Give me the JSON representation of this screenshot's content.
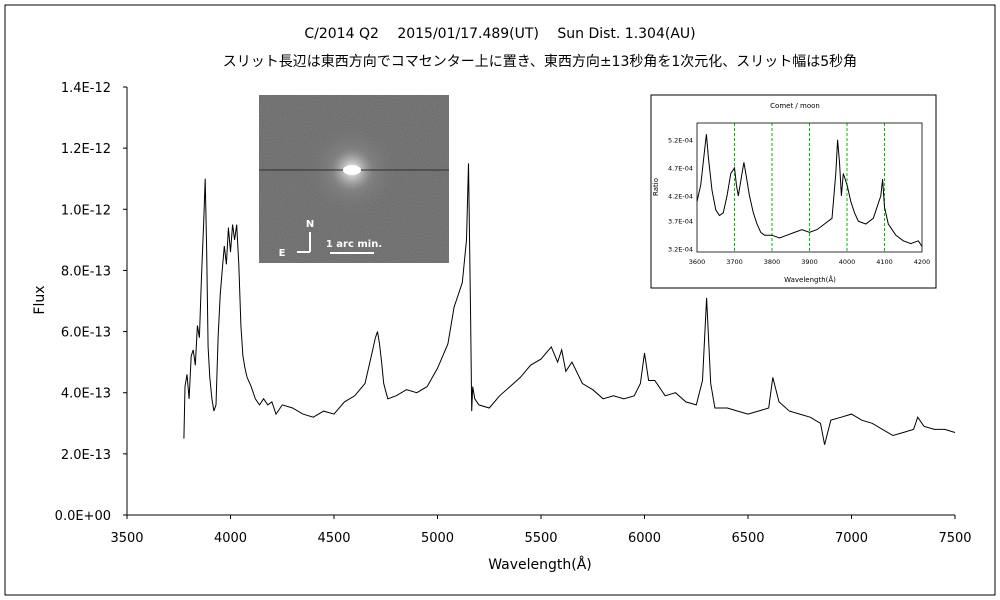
{
  "chart_data": [
    {
      "type": "line",
      "title": "C/2014 Q2　 2015/01/17.489(UT)　 Sun Dist. 1.304(AU)",
      "subtitle": "スリット長辺は東西方向でコマセンター上に置き、東西方向±13秒角を1次元化、スリット幅は5秒角",
      "xlabel": "Wavelength(Å)",
      "ylabel": "Flux",
      "xlim": [
        3500,
        7500
      ],
      "ylim": [
        0,
        1.4e-12
      ],
      "xticks": [
        3500,
        4000,
        4500,
        5000,
        5500,
        6000,
        6500,
        7000,
        7500
      ],
      "yticks": [
        0,
        2e-13,
        4e-13,
        6e-13,
        8e-13,
        1e-12,
        1.2e-12,
        1.4e-12
      ],
      "ytick_labels": [
        "0.0E+00",
        "2.0E-13",
        "4.0E-13",
        "6.0E-13",
        "8.0E-13",
        "1.0E-12",
        "1.2E-12",
        "1.4E-12"
      ],
      "grid": false,
      "line_color": "#000000",
      "series": [
        {
          "x": [
            3775,
            3780,
            3790,
            3800,
            3810,
            3820,
            3830,
            3840,
            3850,
            3860,
            3870,
            3878,
            3885,
            3892,
            3900,
            3910,
            3920,
            3930,
            3940,
            3950,
            3960,
            3970,
            3980,
            3990,
            4000,
            4010,
            4020,
            4030,
            4040,
            4050,
            4060,
            4070,
            4080,
            4100,
            4120,
            4140,
            4160,
            4180,
            4200,
            4220,
            4250,
            4300,
            4350,
            4400,
            4450,
            4500,
            4550,
            4600,
            4650,
            4680,
            4700,
            4710,
            4720,
            4730,
            4740,
            4760,
            4800,
            4850,
            4900,
            4950,
            5000,
            5050,
            5080,
            5100,
            5120,
            5140,
            5150,
            5160,
            5165,
            5170,
            5180,
            5200,
            5250,
            5300,
            5350,
            5400,
            5450,
            5500,
            5550,
            5580,
            5600,
            5620,
            5650,
            5700,
            5750,
            5800,
            5850,
            5900,
            5950,
            5980,
            6000,
            6020,
            6050,
            6100,
            6150,
            6200,
            6250,
            6280,
            6300,
            6320,
            6340,
            6400,
            6450,
            6500,
            6550,
            6600,
            6620,
            6650,
            6700,
            6750,
            6800,
            6850,
            6870,
            6900,
            6950,
            7000,
            7050,
            7100,
            7150,
            7200,
            7250,
            7300,
            7320,
            7350,
            7400,
            7450,
            7500
          ],
          "y": [
            2.5e-13,
            4.2e-13,
            4.6e-13,
            3.8e-13,
            5.2e-13,
            5.4e-13,
            4.9e-13,
            6.2e-13,
            5.8e-13,
            7.8e-13,
            9.5e-13,
            1.1e-12,
            8.6e-13,
            5.5e-13,
            4.5e-13,
            3.8e-13,
            3.4e-13,
            3.6e-13,
            5.8e-13,
            7.2e-13,
            8e-13,
            8.8e-13,
            8.2e-13,
            9.4e-13,
            8.6e-13,
            9.5e-13,
            9e-13,
            9.5e-13,
            8.2e-13,
            6.2e-13,
            5.2e-13,
            4.8e-13,
            4.5e-13,
            4.2e-13,
            3.8e-13,
            3.6e-13,
            3.8e-13,
            3.6e-13,
            3.7e-13,
            3.3e-13,
            3.6e-13,
            3.5e-13,
            3.3e-13,
            3.2e-13,
            3.4e-13,
            3.3e-13,
            3.7e-13,
            3.9e-13,
            4.3e-13,
            5.2e-13,
            5.8e-13,
            6e-13,
            5.6e-13,
            5e-13,
            4.3e-13,
            3.8e-13,
            3.9e-13,
            4.1e-13,
            4e-13,
            4.2e-13,
            4.8e-13,
            5.6e-13,
            6.8e-13,
            7.2e-13,
            7.6e-13,
            9e-13,
            1.15e-12,
            6.5e-13,
            3.4e-13,
            4.2e-13,
            3.8e-13,
            3.6e-13,
            3.5e-13,
            3.9e-13,
            4.2e-13,
            4.5e-13,
            4.9e-13,
            5.1e-13,
            5.5e-13,
            5e-13,
            5.4e-13,
            4.7e-13,
            5e-13,
            4.3e-13,
            4.1e-13,
            3.8e-13,
            3.9e-13,
            3.8e-13,
            3.9e-13,
            4.3e-13,
            5.3e-13,
            4.4e-13,
            4.4e-13,
            3.9e-13,
            4e-13,
            3.7e-13,
            3.6e-13,
            4.4e-13,
            7.1e-13,
            4.3e-13,
            3.5e-13,
            3.5e-13,
            3.4e-13,
            3.3e-13,
            3.4e-13,
            3.5e-13,
            4.5e-13,
            3.7e-13,
            3.4e-13,
            3.3e-13,
            3.2e-13,
            3e-13,
            2.3e-13,
            3.1e-13,
            3.2e-13,
            3.3e-13,
            3.1e-13,
            3e-13,
            2.8e-13,
            2.6e-13,
            2.7e-13,
            2.8e-13,
            3.2e-13,
            2.9e-13,
            2.8e-13,
            2.8e-13,
            2.7e-13
          ]
        }
      ]
    },
    {
      "type": "line",
      "title": "Comet / moon",
      "xlabel": "Wavelength(Å)",
      "ylabel": "Ratio",
      "xlim": [
        3600,
        4200
      ],
      "ylim": [
        0.00032,
        0.00055
      ],
      "xticks": [
        3600,
        3700,
        3800,
        3900,
        4000,
        4100,
        4200
      ],
      "yticks": [
        0.000325,
        0.000375,
        0.00042,
        0.00047,
        0.00052
      ],
      "ytick_labels": [
        "3.2E-04",
        "3.7E-04",
        "4.2E-04",
        "4.7E-04",
        "5.2E-04"
      ],
      "vlines": [
        3700,
        3800,
        3900,
        4000,
        4100
      ],
      "vline_color": "#00bb00",
      "grid": false,
      "series": [
        {
          "x": [
            3600,
            3610,
            3620,
            3625,
            3630,
            3640,
            3650,
            3660,
            3670,
            3680,
            3690,
            3700,
            3705,
            3710,
            3720,
            3725,
            3730,
            3740,
            3750,
            3760,
            3770,
            3780,
            3800,
            3820,
            3840,
            3860,
            3880,
            3900,
            3920,
            3940,
            3960,
            3970,
            3975,
            3980,
            3985,
            3990,
            4000,
            4010,
            4020,
            4030,
            4050,
            4070,
            4090,
            4095,
            4100,
            4110,
            4130,
            4150,
            4170,
            4190,
            4200
          ],
          "y": [
            0.00041,
            0.00044,
            0.0005,
            0.00053,
            0.00049,
            0.00043,
            0.000395,
            0.000385,
            0.00039,
            0.00042,
            0.00046,
            0.00047,
            0.00044,
            0.00042,
            0.00046,
            0.00048,
            0.00046,
            0.00042,
            0.00039,
            0.00037,
            0.000355,
            0.00035,
            0.00035,
            0.000345,
            0.00035,
            0.000355,
            0.00036,
            0.000355,
            0.00036,
            0.00037,
            0.00038,
            0.00046,
            0.00052,
            0.00048,
            0.00042,
            0.00046,
            0.00044,
            0.00041,
            0.00039,
            0.000375,
            0.00037,
            0.00038,
            0.00042,
            0.00045,
            0.0004,
            0.00037,
            0.00035,
            0.00034,
            0.000335,
            0.00034,
            0.00033
          ]
        }
      ]
    }
  ],
  "inset_image": {
    "north_label": "N",
    "east_label": "E",
    "scale_label": "1 arc min."
  }
}
